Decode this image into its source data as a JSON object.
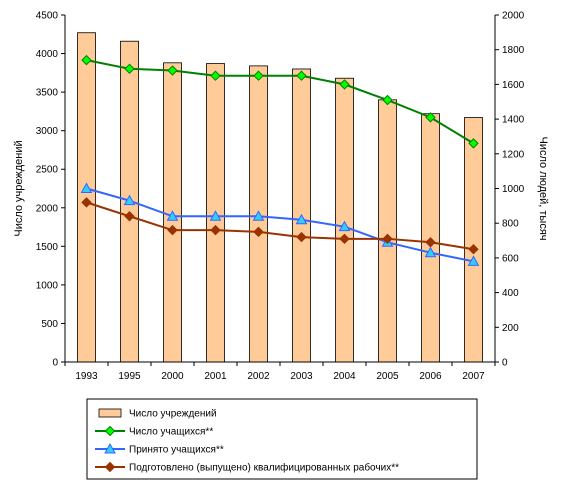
{
  "chart_data": {
    "type": "bar",
    "categories": [
      "1993",
      "1995",
      "2000",
      "2001",
      "2002",
      "2003",
      "2004",
      "2005",
      "2006",
      "2007"
    ],
    "bar_series": {
      "name": "Число учреждений",
      "axis": "left",
      "color": "#FFCC99",
      "values": [
        4270,
        4160,
        3880,
        3870,
        3840,
        3800,
        3680,
        3400,
        3220,
        3170
      ]
    },
    "line_series": [
      {
        "name": "Число учащихся**",
        "axis": "right",
        "color": "#008000",
        "marker": "diamond",
        "marker_color": "#00FF00",
        "values": [
          1740,
          1690,
          1680,
          1650,
          1650,
          1650,
          1600,
          1510,
          1410,
          1260
        ]
      },
      {
        "name": "Принято учащихся**",
        "axis": "right",
        "color": "#3366FF",
        "marker": "triangle",
        "marker_color": "#33CCFF",
        "values": [
          1000,
          930,
          840,
          840,
          840,
          820,
          780,
          690,
          630,
          580
        ]
      },
      {
        "name": "Подготовлено (выпущено) квалифицированных рабочих**",
        "axis": "right",
        "color": "#993300",
        "marker": "diamond",
        "marker_color": "#993300",
        "values": [
          920,
          840,
          760,
          760,
          750,
          720,
          710,
          710,
          690,
          650
        ]
      }
    ],
    "y_left": {
      "label": "Число учреждений",
      "ylim": [
        0,
        4500
      ],
      "ticks": [
        "0",
        "500",
        "1000",
        "1500",
        "2000",
        "2500",
        "3000",
        "3500",
        "4000",
        "4500"
      ]
    },
    "y_right": {
      "label": "Число людей, тысяч",
      "ylim": [
        0,
        2000
      ],
      "ticks": [
        "0",
        "200",
        "400",
        "600",
        "800",
        "1000",
        "1200",
        "1400",
        "1600",
        "1800",
        "2000"
      ]
    },
    "grid": false,
    "legend_position": "bottom"
  }
}
